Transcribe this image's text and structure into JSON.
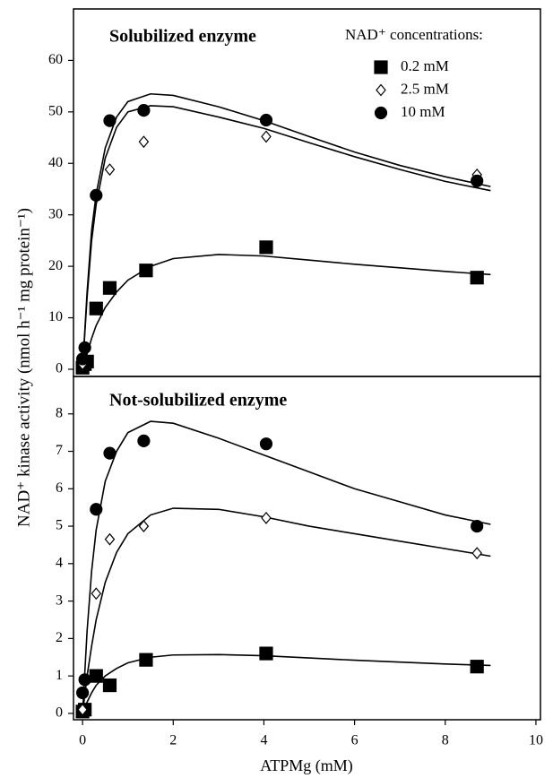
{
  "chart_data": [
    {
      "type": "scatter",
      "title": "Solubilized enzyme",
      "ylabel": "NAD⁺ kinase activity (nmol h⁻¹ mg protein⁻¹)",
      "legend_title": "NAD⁺ concentrations:",
      "legend": "upper right",
      "xlim": [
        -0.2,
        10.1
      ],
      "ylim": [
        -1.4,
        70
      ],
      "yticks": [
        0,
        10,
        20,
        30,
        40,
        50,
        60
      ],
      "fit_x": [
        0,
        0.1,
        0.2,
        0.3,
        0.5,
        0.75,
        1,
        1.5,
        2,
        3,
        4,
        5,
        6,
        7,
        8,
        9
      ],
      "series": [
        {
          "name": "0.2 mM",
          "marker": "square",
          "color": "#000000",
          "x": [
            0,
            0.05,
            0.1,
            0.3,
            0.6,
            1.4,
            4.05,
            8.7
          ],
          "values": [
            0.3,
            1,
            1.5,
            11.8,
            15.8,
            19.2,
            23.7,
            17.8
          ],
          "fit_values": [
            0,
            3,
            6,
            8.5,
            12,
            15,
            17.3,
            20,
            21.5,
            22.3,
            22,
            21.2,
            20.4,
            19.7,
            19,
            18.4
          ]
        },
        {
          "name": "2.5 mM",
          "marker": "diamond",
          "color": "#ffffff",
          "x": [
            0,
            0.05,
            0.3,
            0.6,
            1.35,
            4.05,
            8.7
          ],
          "values": [
            1,
            2,
            33.5,
            38.8,
            44.2,
            45.2,
            37.8
          ],
          "fit_values": [
            0,
            14,
            25,
            32,
            41,
            47,
            50,
            51.2,
            51,
            49,
            46.8,
            44,
            41.3,
            38.8,
            36.5,
            34.7
          ]
        },
        {
          "name": "10 mM",
          "marker": "circle",
          "color": "#000000",
          "x": [
            0,
            0.05,
            0.3,
            0.6,
            1.35,
            4.05,
            8.7
          ],
          "values": [
            2,
            4.2,
            33.8,
            48.3,
            50.3,
            48.4,
            36.6
          ],
          "fit_values": [
            0,
            15,
            27,
            34,
            43,
            49,
            52,
            53.5,
            53.2,
            51,
            48.3,
            45.2,
            42.2,
            39.6,
            37.4,
            35.5
          ]
        }
      ]
    },
    {
      "type": "scatter",
      "title": "Not-solubilized enzyme",
      "xlabel": "ATPMg (mM)",
      "xlim": [
        -0.2,
        10.1
      ],
      "ylim": [
        -0.17,
        9
      ],
      "xticks": [
        0,
        2,
        4,
        6,
        8,
        10
      ],
      "yticks": [
        0,
        1,
        2,
        3,
        4,
        5,
        6,
        7,
        8
      ],
      "fit_x": [
        0,
        0.1,
        0.2,
        0.3,
        0.5,
        0.75,
        1,
        1.5,
        2,
        3,
        4,
        5,
        6,
        7,
        8,
        9
      ],
      "series": [
        {
          "marker": "square",
          "color": "#000000",
          "x": [
            0,
            0.05,
            0.3,
            0.6,
            1.4,
            4.05,
            8.7
          ],
          "values": [
            0.05,
            0.1,
            1,
            0.75,
            1.43,
            1.6,
            1.25
          ],
          "fit_values": [
            0,
            0.3,
            0.55,
            0.75,
            1.0,
            1.2,
            1.35,
            1.5,
            1.56,
            1.57,
            1.54,
            1.48,
            1.42,
            1.37,
            1.32,
            1.28
          ]
        },
        {
          "marker": "diamond",
          "color": "#ffffff",
          "x": [
            0,
            0.05,
            0.3,
            0.6,
            1.35,
            4.05,
            8.7
          ],
          "values": [
            0.1,
            0.9,
            3.2,
            4.65,
            5,
            5.22,
            4.28
          ],
          "fit_values": [
            0,
            1,
            1.8,
            2.5,
            3.5,
            4.3,
            4.8,
            5.3,
            5.48,
            5.45,
            5.25,
            5.0,
            4.8,
            4.6,
            4.4,
            4.2
          ]
        },
        {
          "marker": "circle",
          "color": "#000000",
          "x": [
            0,
            0.05,
            0.3,
            0.6,
            1.35,
            4.05,
            8.7
          ],
          "values": [
            0.55,
            0.9,
            5.45,
            6.95,
            7.28,
            7.2,
            5
          ],
          "fit_values": [
            0,
            2.2,
            3.8,
            4.9,
            6.2,
            7,
            7.5,
            7.8,
            7.75,
            7.35,
            6.9,
            6.45,
            6.0,
            5.65,
            5.3,
            5.05
          ]
        }
      ]
    }
  ]
}
